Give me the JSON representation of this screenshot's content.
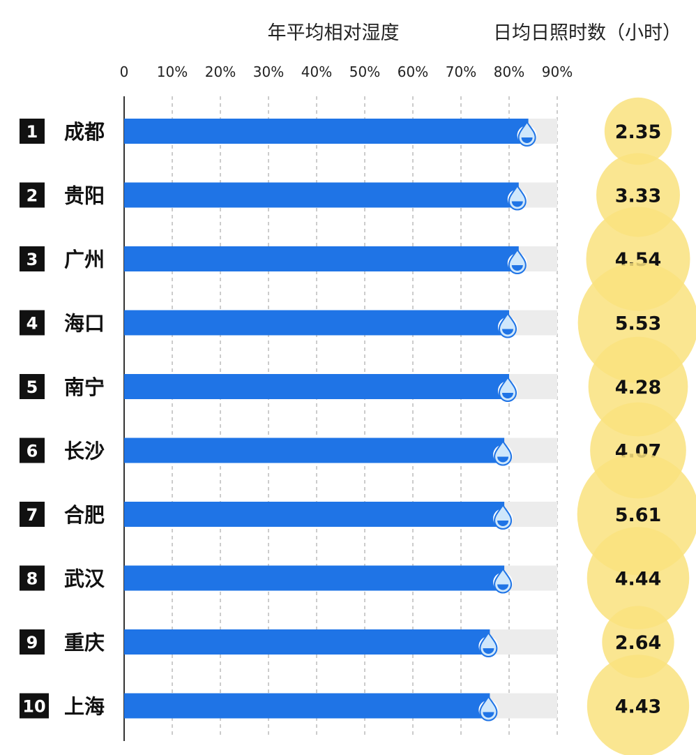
{
  "chart_data": {
    "type": "bar",
    "title": "年平均相对湿度",
    "secondary_title": "日均日照时数（小时）",
    "x_ticks": [
      "0",
      "10%",
      "20%",
      "30%",
      "40%",
      "50%",
      "60%",
      "70%",
      "80%",
      "90%"
    ],
    "xlim": [
      0,
      90
    ],
    "grid": true,
    "orientation": "horizontal",
    "categories": [
      "成都",
      "贵阳",
      "广州",
      "海口",
      "南宁",
      "长沙",
      "合肥",
      "武汉",
      "重庆",
      "上海"
    ],
    "ranks": [
      "1",
      "2",
      "3",
      "4",
      "5",
      "6",
      "7",
      "8",
      "9",
      "10"
    ],
    "series": [
      {
        "name": "年平均相对湿度",
        "unit": "%",
        "values": [
          84,
          82,
          82,
          80,
          80,
          79,
          79,
          79,
          76,
          76
        ]
      },
      {
        "name": "日均日照时数（小时）",
        "unit": "小时",
        "values": [
          2.35,
          3.33,
          4.54,
          5.53,
          4.28,
          4.07,
          5.61,
          4.44,
          2.64,
          4.43
        ]
      }
    ],
    "sunshine_labels": [
      "2.35",
      "3.33",
      "4.54",
      "5.53",
      "4.28",
      "4.07",
      "5.61",
      "4.44",
      "2.64",
      "4.43"
    ]
  },
  "colors": {
    "bar": "#1f74e6",
    "track": "#ececec",
    "grid": "#9a9a9a",
    "axis": "#333333",
    "rank_bg": "#111111",
    "sun_circle": "#f9e27e",
    "drop": "#1f74e6",
    "drop_light": "#cfe7fb"
  }
}
